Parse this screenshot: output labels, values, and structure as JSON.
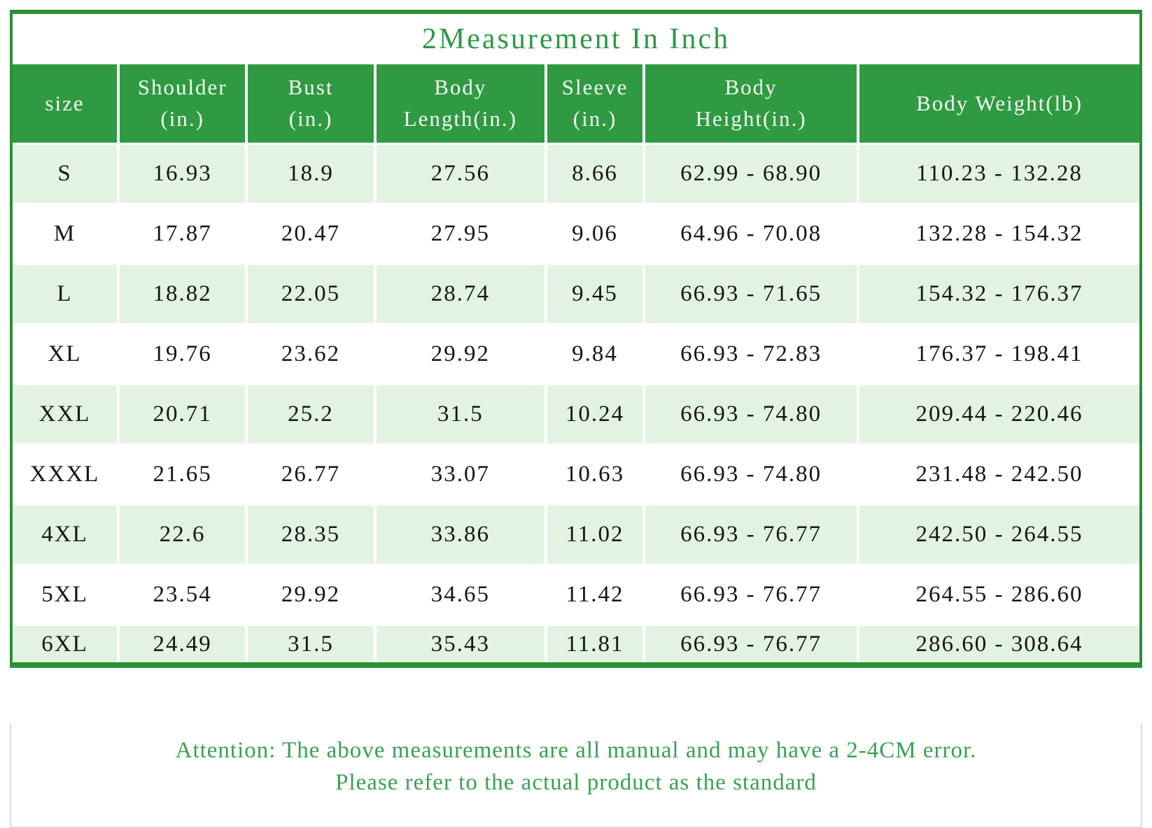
{
  "title": "2Measurement In Inch",
  "colors": {
    "green_border": "#2a9135",
    "green_header": "#2f9a41",
    "green_light_row": "#e2f3e1",
    "green_title": "#2e9844",
    "green_attention_text": "#3aa053",
    "gray_border": "#d9d9d9",
    "cell_text": "#151515"
  },
  "table": {
    "column_keys": [
      "size",
      "shoulder",
      "bust",
      "body_length",
      "sleeve",
      "body_height",
      "body_weight"
    ],
    "columns": [
      {
        "id": "size",
        "label": "size"
      },
      {
        "id": "shoulder",
        "label": "Shoulder\n(in.)"
      },
      {
        "id": "bust",
        "label": "Bust\n(in.)"
      },
      {
        "id": "body-length",
        "label": "Body\nLength(in.)"
      },
      {
        "id": "sleeve",
        "label": "Sleeve\n(in.)"
      },
      {
        "id": "body-height",
        "label": "Body\nHeight(in.)"
      },
      {
        "id": "body-weight",
        "label": "Body Weight(lb)"
      }
    ],
    "rows": [
      {
        "size": "S",
        "shoulder": "16.93",
        "bust": "18.9",
        "body_length": "27.56",
        "sleeve": "8.66",
        "body_height": "62.99 - 68.90",
        "body_weight": "110.23 - 132.28"
      },
      {
        "size": "M",
        "shoulder": "17.87",
        "bust": "20.47",
        "body_length": "27.95",
        "sleeve": "9.06",
        "body_height": "64.96 - 70.08",
        "body_weight": "132.28 - 154.32"
      },
      {
        "size": "L",
        "shoulder": "18.82",
        "bust": "22.05",
        "body_length": "28.74",
        "sleeve": "9.45",
        "body_height": "66.93 - 71.65",
        "body_weight": "154.32 - 176.37"
      },
      {
        "size": "XL",
        "shoulder": "19.76",
        "bust": "23.62",
        "body_length": "29.92",
        "sleeve": "9.84",
        "body_height": "66.93 - 72.83",
        "body_weight": "176.37 - 198.41"
      },
      {
        "size": "XXL",
        "shoulder": "20.71",
        "bust": "25.2",
        "body_length": "31.5",
        "sleeve": "10.24",
        "body_height": "66.93 - 74.80",
        "body_weight": "209.44 - 220.46"
      },
      {
        "size": "XXXL",
        "shoulder": "21.65",
        "bust": "26.77",
        "body_length": "33.07",
        "sleeve": "10.63",
        "body_height": "66.93 - 74.80",
        "body_weight": "231.48 - 242.50"
      },
      {
        "size": "4XL",
        "shoulder": "22.6",
        "bust": "28.35",
        "body_length": "33.86",
        "sleeve": "11.02",
        "body_height": "66.93 - 76.77",
        "body_weight": "242.50 - 264.55"
      },
      {
        "size": "5XL",
        "shoulder": "23.54",
        "bust": "29.92",
        "body_length": "34.65",
        "sleeve": "11.42",
        "body_height": "66.93 - 76.77",
        "body_weight": "264.55 - 286.60"
      },
      {
        "size": "6XL",
        "shoulder": "24.49",
        "bust": "31.5",
        "body_length": "35.43",
        "sleeve": "11.81",
        "body_height": "66.93 - 76.77",
        "body_weight": "286.60 - 308.64"
      }
    ]
  },
  "attention": {
    "line1": "Attention: The above measurements are all manual and may have a 2-4CM error.",
    "line2": "Please refer to the actual product as the standard"
  }
}
